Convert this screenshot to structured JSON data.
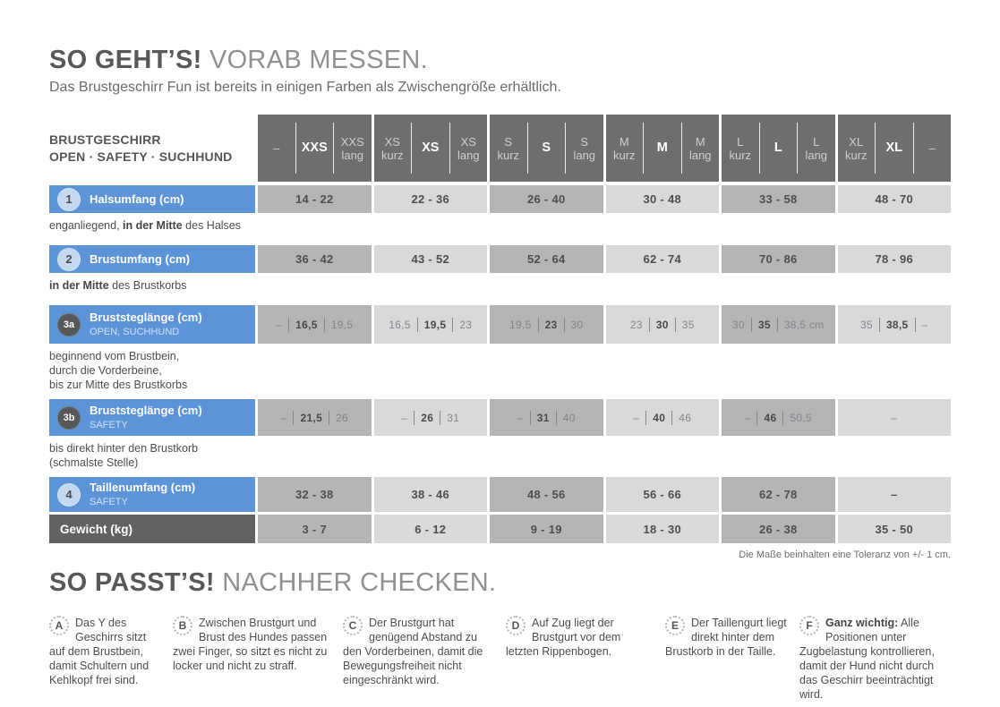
{
  "page": {
    "title_bold": "SO GEHT’S!",
    "title_light": "VORAB MESSEN.",
    "subtitle": "Das Brustgeschirr Fun ist bereits in einigen Farben als Zwischengröße erhältlich."
  },
  "colors": {
    "accent_blue": "#5c94d7",
    "header_gray": "#6e6e70",
    "cell_dark": "#b5b5b7",
    "cell_light": "#d9d9db",
    "label_dark": "#626264"
  },
  "table": {
    "label_header_line1": "BRUSTGESCHIRR",
    "label_header_line2": "OPEN · SAFETY · SUCHHUND",
    "size_groups": [
      {
        "left1": "–",
        "left2": "",
        "center": "XXS",
        "right1": "XXS",
        "right2": "lang"
      },
      {
        "left1": "XS",
        "left2": "kurz",
        "center": "XS",
        "right1": "XS",
        "right2": "lang"
      },
      {
        "left1": "S",
        "left2": "kurz",
        "center": "S",
        "right1": "S",
        "right2": "lang"
      },
      {
        "left1": "M",
        "left2": "kurz",
        "center": "M",
        "right1": "M",
        "right2": "lang"
      },
      {
        "left1": "L",
        "left2": "kurz",
        "center": "L",
        "right1": "L",
        "right2": "lang"
      },
      {
        "left1": "XL",
        "left2": "kurz",
        "center": "XL",
        "right1": "–",
        "right2": ""
      }
    ],
    "rows": {
      "halsumfang": {
        "num": "1",
        "label": "Halsumfang (cm)",
        "values": [
          "14 - 22",
          "22 - 36",
          "26 - 40",
          "30 - 48",
          "33 - 58",
          "48 - 70"
        ],
        "desc_pre": "enganliegend, ",
        "desc_bold": "in der Mitte",
        "desc_post": " des Halses"
      },
      "brustumfang": {
        "num": "2",
        "label": "Brustumfang (cm)",
        "values": [
          "36 - 42",
          "43 - 52",
          "52 - 64",
          "62 - 74",
          "70 - 86",
          "78 - 96"
        ],
        "desc_pre": "",
        "desc_bold": "in der Mitte",
        "desc_post": " des Brustkorbs"
      },
      "bruststeg_open": {
        "num": "3a",
        "label": "Bruststeglänge (cm)",
        "sublabel": "OPEN, SUCHHUND",
        "triples": [
          [
            "–",
            "16,5",
            "19,5"
          ],
          [
            "16,5",
            "19,5",
            "23"
          ],
          [
            "19,5",
            "23",
            "30"
          ],
          [
            "23",
            "30",
            "35"
          ],
          [
            "30",
            "35",
            "38,5 cm"
          ],
          [
            "35",
            "38,5",
            "–"
          ]
        ],
        "desc_lines": [
          "beginnend vom Brustbein,",
          "durch die Vorderbeine,",
          "bis zur Mitte des Brustkorbs"
        ]
      },
      "bruststeg_safety": {
        "num": "3b",
        "label": "Bruststeglänge (cm)",
        "sublabel": "SAFETY",
        "triples": [
          [
            "–",
            "21,5",
            "26"
          ],
          [
            "–",
            "26",
            "31"
          ],
          [
            "–",
            "31",
            "40"
          ],
          [
            "–",
            "40",
            "46"
          ],
          [
            "–",
            "46",
            "50,5"
          ]
        ],
        "last": "–",
        "desc_lines": [
          "bis direkt hinter den Brustkorb",
          "(schmalste Stelle)"
        ]
      },
      "taillenumfang": {
        "num": "4",
        "label": "Taillenumfang (cm)",
        "sublabel": "SAFETY",
        "values": [
          "32 - 38",
          "38 - 46",
          "48 - 56",
          "56 - 66",
          "62 - 78",
          "–"
        ]
      },
      "gewicht": {
        "label": "Gewicht (kg)",
        "values": [
          "3 - 7",
          "6 - 12",
          "9 - 19",
          "18 - 30",
          "26 - 38",
          "35 - 50"
        ]
      }
    },
    "footer_note": "Die Maße beinhalten eine Toleranz von +/- 1 cm."
  },
  "section2": {
    "title_bold": "SO PASST’S!",
    "title_light": "NACHHER CHECKEN.",
    "items": [
      {
        "letter": "A",
        "text": "Das Y des Geschirrs sitzt auf dem Brustbein, damit Schultern und Kehlkopf frei sind."
      },
      {
        "letter": "B",
        "text": "Zwischen Brustgurt und Brust des Hundes passen zwei Finger, so sitzt es nicht zu locker und nicht zu straff."
      },
      {
        "letter": "C",
        "text": "Der Brustgurt hat genügend Abstand zu den Vorderbeinen, damit die Bewegungsfreiheit nicht eingeschränkt wird."
      },
      {
        "letter": "D",
        "text": "Auf Zug liegt der Brustgurt vor dem letzten Rippenbogen."
      },
      {
        "letter": "E",
        "text": "Der Taillengurt liegt direkt hinter dem Brustkorb in der Taille."
      },
      {
        "letter": "F",
        "bold": "Ganz wichtig:",
        "text": " Alle Positionen unter Zugbelastung kontrollieren, damit der Hund nicht durch das Geschirr beeinträchtigt wird."
      }
    ]
  }
}
